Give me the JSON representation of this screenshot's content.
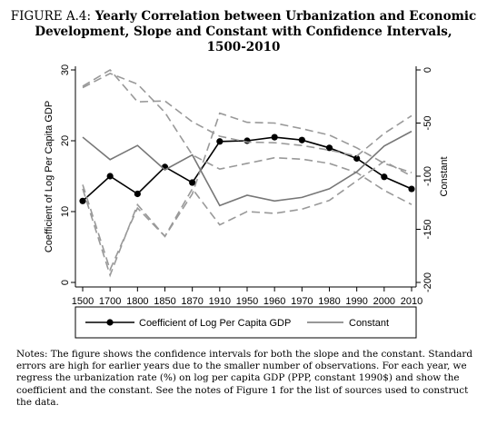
{
  "figure": {
    "label": "FIGURE A.4:",
    "title_lines": [
      "Yearly Correlation between Urbanization and Economic",
      "Development, Slope and Constant with Confidence Intervals,",
      "1500-2010"
    ]
  },
  "chart_data": {
    "type": "line",
    "x": [
      "1500",
      "1700",
      "1800",
      "1850",
      "1870",
      "1910",
      "1950",
      "1960",
      "1970",
      "1980",
      "1990",
      "2000",
      "2010"
    ],
    "ylabel": "Coefficient of Log Per Capita GDP",
    "ylim": [
      0,
      30
    ],
    "yticks": [
      0,
      10,
      20,
      30
    ],
    "y2label": "Constant",
    "y2lim": [
      -200,
      0
    ],
    "y2ticks": [
      0,
      -50,
      -100,
      -150,
      -200
    ],
    "grid": false,
    "legend_position": "bottom",
    "series": [
      {
        "name": "Coefficient of Log Per Capita GDP",
        "axis": "left",
        "style": "solid-marker",
        "color": "#000000",
        "values": [
          11.5,
          15.0,
          12.5,
          16.3,
          14.1,
          19.9,
          20.0,
          20.5,
          20.1,
          19.0,
          17.5,
          14.9,
          13.2
        ]
      },
      {
        "role": "ci-upper",
        "axis": "left",
        "style": "dash",
        "color": "#999999",
        "values": [
          27.5,
          29.5,
          28.0,
          24.0,
          18.0,
          16.0,
          16.8,
          17.6,
          17.4,
          16.8,
          15.5,
          13.0,
          11.0
        ]
      },
      {
        "role": "ci-lower",
        "axis": "left",
        "style": "dash",
        "color": "#999999",
        "values": [
          13.8,
          1.8,
          10.5,
          6.5,
          12.5,
          23.9,
          22.6,
          22.5,
          21.7,
          20.8,
          19.0,
          16.8,
          15.5
        ]
      },
      {
        "name": "Constant",
        "axis": "right",
        "style": "solid",
        "color": "#777777",
        "values": [
          -63.3,
          -84.4,
          -71.1,
          -94.0,
          -80.0,
          -127.7,
          -117.9,
          -123.3,
          -120.0,
          -111.9,
          -95.9,
          -71.6,
          -57.8
        ]
      },
      {
        "role": "ci-upper",
        "axis": "right",
        "style": "dash",
        "color": "#999999",
        "values": [
          -15.3,
          0.0,
          -30.0,
          -29.2,
          -48.8,
          -62.4,
          -67.9,
          -68.5,
          -71.1,
          -75.5,
          -81.1,
          -59.8,
          -43.1
        ]
      },
      {
        "role": "ci-lower",
        "axis": "right",
        "style": "dash",
        "color": "#999999",
        "values": [
          -111.9,
          -193.2,
          -126.8,
          -156.6,
          -111.9,
          -145.8,
          -133.3,
          -135.0,
          -131.1,
          -122.8,
          -104.4,
          -86.0,
          -100.0
        ]
      }
    ]
  },
  "notes": "Notes: The figure shows the confidence intervals for both the slope and the constant. Standard errors are high for earlier years due to the smaller number of observations. For each year, we regress the urbanization rate (%) on log per capita GDP (PPP, constant 1990$) and show the coefficient and the constant. See the notes of Figure 1 for the list of sources used to construct the data."
}
